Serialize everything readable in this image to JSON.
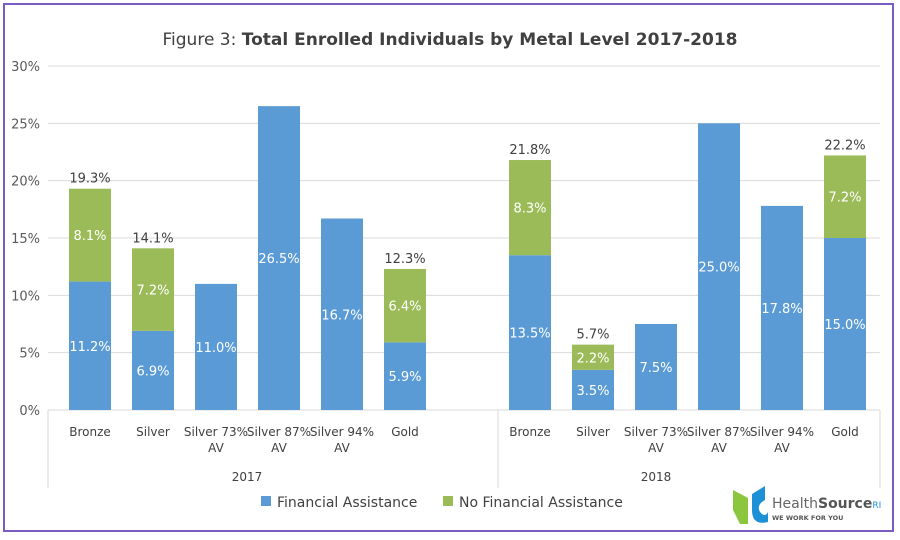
{
  "chart_data": {
    "type": "bar",
    "stacked": true,
    "title_prefix": "Figure 3: ",
    "title": "Total Enrolled Individuals by Metal Level 2017-2018",
    "groups": [
      "2017",
      "2018"
    ],
    "categories": [
      "Bronze",
      "Silver",
      "Silver 73% AV",
      "Silver 87% AV",
      "Silver 94% AV",
      "Gold"
    ],
    "category_lines": [
      [
        "Bronze"
      ],
      [
        "Silver"
      ],
      [
        "Silver 73%",
        "AV"
      ],
      [
        "Silver 87%",
        "AV"
      ],
      [
        "Silver 94%",
        "AV"
      ],
      [
        "Gold"
      ]
    ],
    "series": [
      {
        "name": "Financial Assistance",
        "color": "#5b9bd5",
        "values": {
          "2017": [
            11.2,
            6.9,
            11.0,
            26.5,
            16.7,
            5.9
          ],
          "2018": [
            13.5,
            3.5,
            7.5,
            25.0,
            17.8,
            15.0
          ]
        }
      },
      {
        "name": "No Financial Assistance",
        "color": "#9bbb59",
        "values": {
          "2017": [
            8.1,
            7.2,
            null,
            null,
            null,
            6.4
          ],
          "2018": [
            8.3,
            2.2,
            null,
            null,
            null,
            7.2
          ]
        }
      }
    ],
    "totals": {
      "2017": [
        19.3,
        14.1,
        null,
        null,
        null,
        12.3
      ],
      "2018": [
        21.8,
        5.7,
        null,
        null,
        null,
        22.2
      ]
    },
    "ylim": [
      0,
      30
    ],
    "yticks": [
      "0%",
      "5%",
      "10%",
      "15%",
      "20%",
      "25%",
      "30%"
    ],
    "grid": true,
    "legend": "bottom"
  },
  "logo": {
    "name": "HealthSource",
    "suffix": "RI",
    "tagline": "WE WORK FOR YOU"
  },
  "frame_color": "#7a5cc0"
}
